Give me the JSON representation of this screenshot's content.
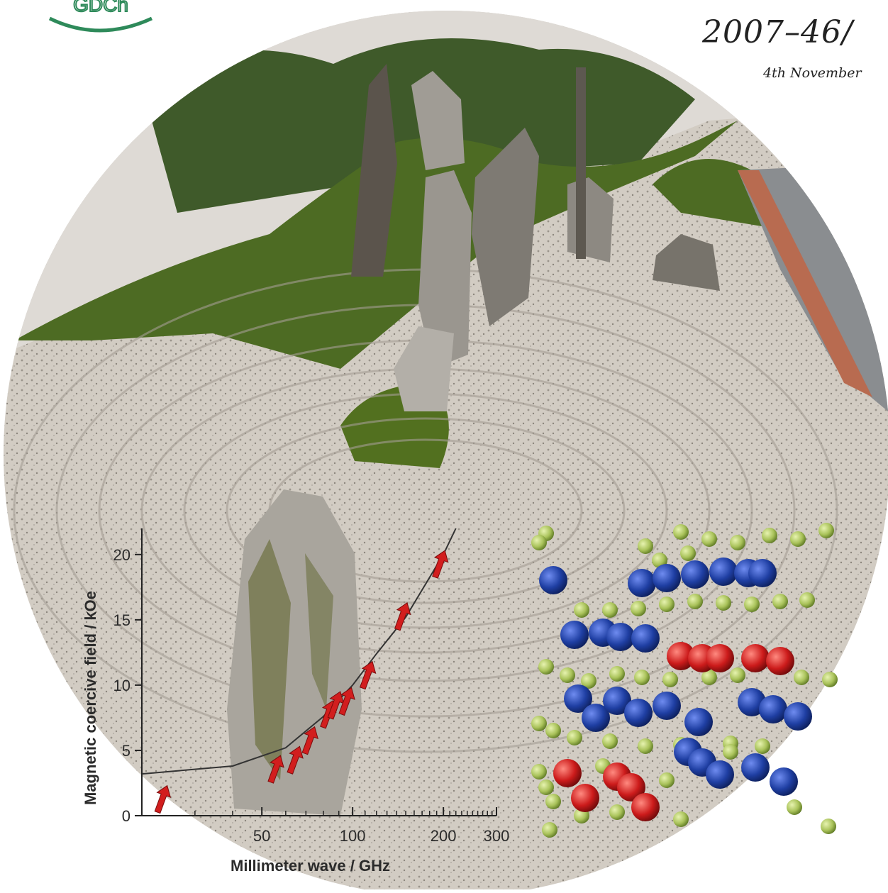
{
  "header": {
    "logo_text": "GDCh",
    "issue": "2007–46/",
    "date": "4th November"
  },
  "colors": {
    "logo_green": "#2e8a5a",
    "gravel": "#cfc9c0",
    "moss": "#4d6b23",
    "rock": "#8b8780",
    "arrow_red": "#d21e1e",
    "atom_blue": "#1f3fa3",
    "atom_red": "#cc1b1b",
    "atom_green": "#a9c25a"
  },
  "chart_data": {
    "type": "scatter",
    "title": "",
    "xlabel": "Millimeter wave / GHz",
    "ylabel": "Magnetic coercive field / kOe",
    "x_scale": "log",
    "xlim": [
      20,
      300
    ],
    "ylim": [
      0,
      22
    ],
    "x_ticks": [
      "50",
      "100",
      "200",
      "300"
    ],
    "y_ticks": [
      "0",
      "5",
      "10",
      "15",
      "20"
    ],
    "series": [
      {
        "marker": "red-arrow",
        "points": [
          {
            "x": 24,
            "y": 2.0
          },
          {
            "x": 57,
            "y": 4.3
          },
          {
            "x": 66,
            "y": 5.0
          },
          {
            "x": 74,
            "y": 6.5
          },
          {
            "x": 85,
            "y": 8.5
          },
          {
            "x": 90,
            "y": 9.2
          },
          {
            "x": 98,
            "y": 9.5
          },
          {
            "x": 115,
            "y": 11.5
          },
          {
            "x": 150,
            "y": 16.0
          },
          {
            "x": 200,
            "y": 20.0
          }
        ]
      },
      {
        "marker": "fit-curve",
        "points": [
          {
            "x": 20,
            "y": 3.2
          },
          {
            "x": 40,
            "y": 3.8
          },
          {
            "x": 60,
            "y": 5.2
          },
          {
            "x": 80,
            "y": 7.6
          },
          {
            "x": 100,
            "y": 10.0
          },
          {
            "x": 120,
            "y": 12.4
          },
          {
            "x": 150,
            "y": 15.2
          },
          {
            "x": 200,
            "y": 20.0
          },
          {
            "x": 220,
            "y": 22.0
          }
        ]
      }
    ]
  }
}
